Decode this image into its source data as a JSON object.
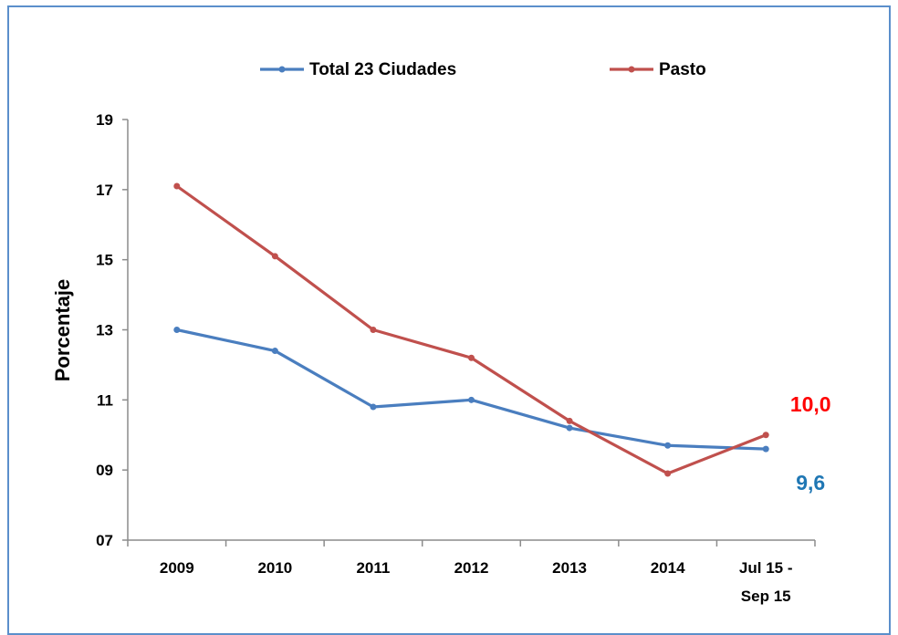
{
  "chart_data": {
    "type": "line",
    "categories": [
      "2009",
      "2010",
      "2011",
      "2012",
      "2013",
      "2014",
      "Jul 15 - Sep 15"
    ],
    "category_lines": [
      [
        "2009"
      ],
      [
        "2010"
      ],
      [
        "2011"
      ],
      [
        "2012"
      ],
      [
        "2013"
      ],
      [
        "2014"
      ],
      [
        "Jul 15 -",
        "Sep 15"
      ]
    ],
    "series": [
      {
        "name": "Total 23 Ciudades",
        "color": "#4a7ebf",
        "values": [
          13.0,
          12.4,
          10.8,
          11.0,
          10.2,
          9.7,
          9.6
        ],
        "end_label": "9,6",
        "end_label_color": "#1f77b4"
      },
      {
        "name": "Pasto",
        "color": "#c0504d",
        "values": [
          17.1,
          15.1,
          13.0,
          12.2,
          10.4,
          8.9,
          10.0
        ],
        "end_label": "10,0",
        "end_label_color": "#ff0000"
      }
    ],
    "ylabel": "Porcentaje",
    "ylim": [
      7,
      19
    ],
    "yticks": [
      "07",
      "09",
      "11",
      "13",
      "15",
      "17",
      "19"
    ],
    "ytick_values": [
      7,
      9,
      11,
      13,
      15,
      17,
      19
    ],
    "grid": false,
    "legend_position": "top"
  }
}
